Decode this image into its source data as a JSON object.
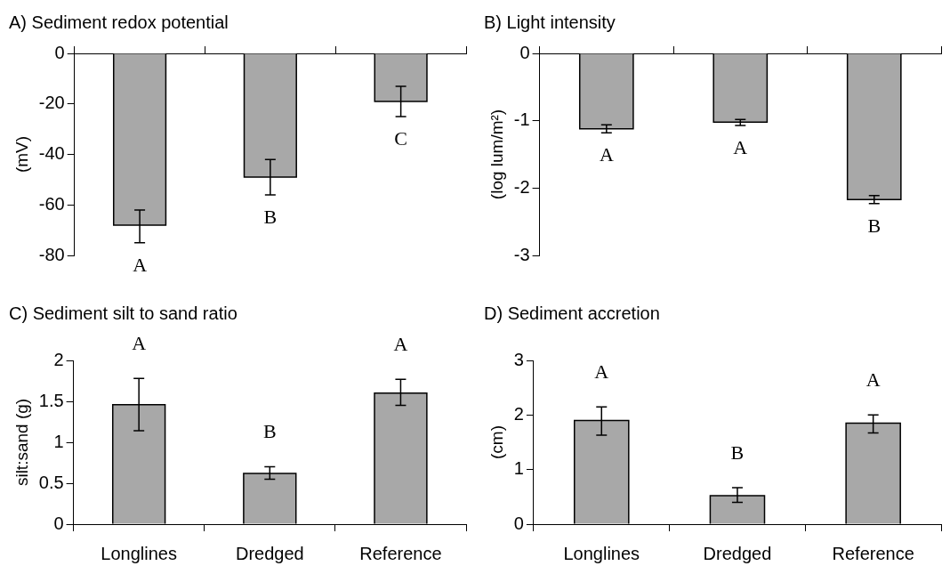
{
  "chart_data": [
    {
      "type": "bar",
      "title": "A) Sediment redox potential",
      "ylabel": "(mV)",
      "categories": [
        null,
        null,
        null
      ],
      "values": [
        -68,
        -49,
        -19
      ],
      "color": "#a8a8a8",
      "errors": [
        [
          -75,
          -62
        ],
        [
          -56,
          -42
        ],
        [
          -25,
          -13
        ]
      ],
      "ylim": [
        -80,
        0
      ],
      "yticks": [
        -80,
        -60,
        -40,
        -20,
        0
      ],
      "tick_labels": "y",
      "annotations": [
        "A",
        "B",
        "C"
      ]
    },
    {
      "type": "bar",
      "title": "B) Light intensity",
      "ylabel": "(log lum/m²)",
      "categories": [
        null,
        null,
        null
      ],
      "values": [
        -1.12,
        -1.02,
        -2.17
      ],
      "color": "#a8a8a8",
      "errors": [
        [
          -1.18,
          -1.06
        ],
        [
          -1.07,
          -0.98
        ],
        [
          -2.23,
          -2.11
        ]
      ],
      "ylim": [
        -3,
        0
      ],
      "yticks": [
        -3,
        -2,
        -1,
        0
      ],
      "tick_labels": "y",
      "annotations": [
        "A",
        "A",
        "B"
      ]
    },
    {
      "type": "bar",
      "title": "C) Sediment silt to sand ratio",
      "ylabel": "silt:sand (g)",
      "categories": [
        "Longlines",
        "Dredged",
        "Reference"
      ],
      "values": [
        1.46,
        0.62,
        1.6
      ],
      "color": "#a8a8a8",
      "errors": [
        [
          1.14,
          1.78
        ],
        [
          0.55,
          0.7
        ],
        [
          1.45,
          1.77
        ]
      ],
      "ylim": [
        0,
        2
      ],
      "yticks": [
        0,
        0.5,
        1,
        1.5,
        2
      ],
      "annotations": [
        "A",
        "B",
        "A"
      ]
    },
    {
      "type": "bar",
      "title": "D) Sediment accretion",
      "ylabel": "(cm)",
      "categories": [
        "Longlines",
        "Dredged",
        "Reference"
      ],
      "values": [
        1.9,
        0.52,
        1.85
      ],
      "color": "#a8a8a8",
      "errors": [
        [
          1.63,
          2.15
        ],
        [
          0.4,
          0.67
        ],
        [
          1.67,
          2.0
        ]
      ],
      "ylim": [
        0,
        3
      ],
      "yticks": [
        0,
        1,
        2,
        3
      ],
      "annotations": [
        "A",
        "B",
        "A"
      ]
    }
  ]
}
